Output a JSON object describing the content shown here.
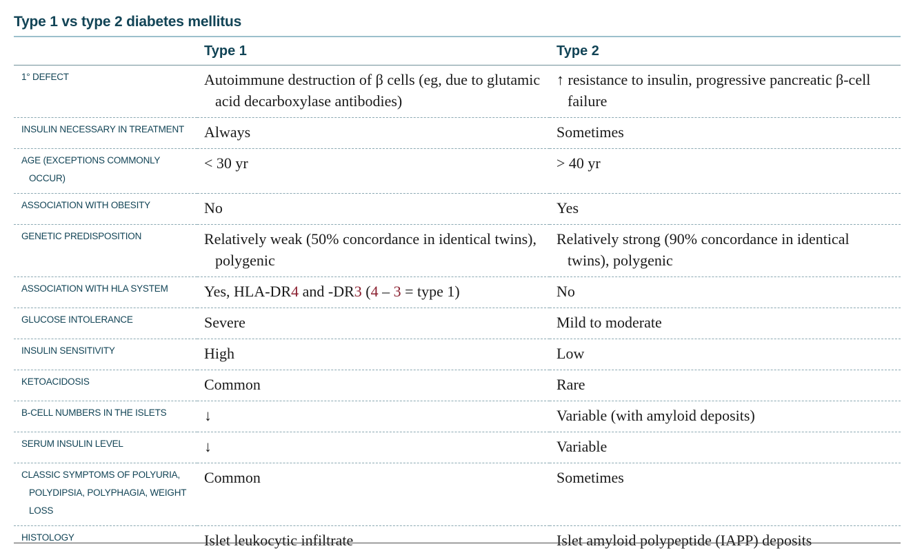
{
  "title": "Type 1 vs type 2 diabetes mellitus",
  "columns": [
    "",
    "Type 1",
    "Type 2"
  ],
  "rows": [
    {
      "label": "1° defect",
      "type1": "Autoimmune destruction of β cells (eg, due to glutamic acid decarboxylase antibodies)",
      "type2": "↑ resistance to insulin, progressive pancreatic β-cell failure"
    },
    {
      "label": "Insulin necessary in treatment",
      "type1": "Always",
      "type2": "Sometimes"
    },
    {
      "label": "Age (exceptions commonly occur)",
      "type1": "< 30 yr",
      "type2": "> 40 yr"
    },
    {
      "label": "Association with obesity",
      "type1": "No",
      "type2": "Yes"
    },
    {
      "label": "Genetic predisposition",
      "type1": "Relatively weak (50% concordance in identical twins), polygenic",
      "type2": "Relatively strong (90% concordance in identical twins), polygenic"
    },
    {
      "label": "Association with HLA system",
      "type1_parts": [
        "Yes, HLA-DR",
        "4",
        " and -DR",
        "3",
        " (",
        "4",
        " – ",
        "3",
        " = type 1)"
      ],
      "type2": "No"
    },
    {
      "label": "Glucose intolerance",
      "type1": "Severe",
      "type2": "Mild to moderate"
    },
    {
      "label": "Insulin sensitivity",
      "type1": "High",
      "type2": "Low"
    },
    {
      "label": "Ketoacidosis",
      "type1": "Common",
      "type2": "Rare"
    },
    {
      "label": "β-cell numbers in the islets",
      "type1": "↓",
      "type2": "Variable (with amyloid deposits)"
    },
    {
      "label": "Serum insulin level",
      "type1": "↓",
      "type2": "Variable"
    },
    {
      "label": "Classic symptoms of polyuria, polydipsia, polyphagia, weight loss",
      "type1": "Common",
      "type2": "Sometimes"
    },
    {
      "label": "Histology",
      "type1": "Islet leukocytic infiltrate",
      "type2": "Islet amyloid polypeptide (IAPP) deposits"
    }
  ],
  "colors": {
    "heading": "#124456",
    "highlight": "#8b2030",
    "text": "#1a1a1a"
  }
}
